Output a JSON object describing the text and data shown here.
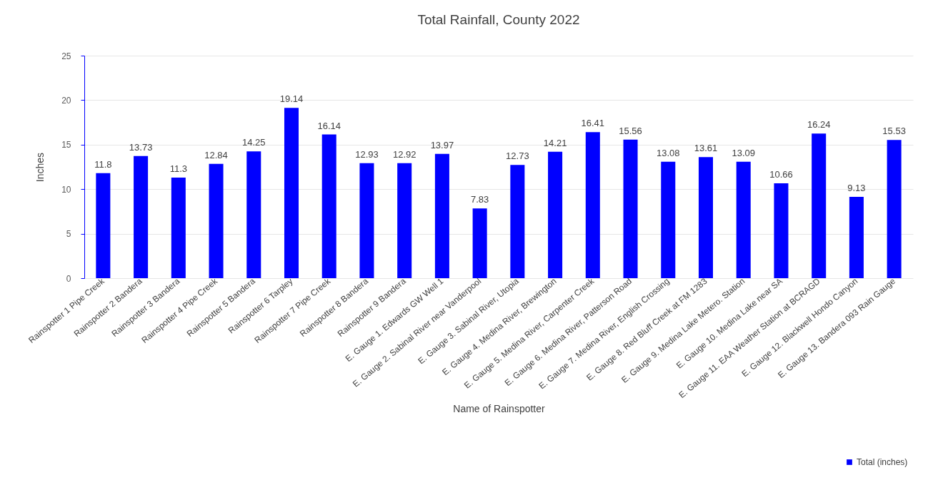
{
  "chart_data": {
    "type": "bar",
    "title": "Total Rainfall, County 2022",
    "xlabel": "Name of Rainspotter",
    "ylabel": "Inches",
    "categories": [
      "Rainspotter 1 Pipe Creek",
      "Rainspotter 2 Bandera",
      "Rainspotter 3 Bandera",
      "Rainspotter 4 Pipe Creek",
      "Rainspotter 5 Bandera",
      "Rainspotter 6 Tarpley",
      "Rainspotter 7 Pipe Creek",
      "Rainspotter 8 Bandera",
      "Rainspotter 9 Bandera",
      "E. Gauge 1. Edwards GW Well 1",
      "E. Gauge 2. Sabinal River near Vanderpool",
      "E. Gauge 3. Sabinal River, Utopia",
      "E. Gauge 4. Medina River, Brewington",
      "E. Gauge 5. Medina River, Carpenter Creek",
      "E. Gauge 6. Medina River, Patterson Road",
      "E. Gauge 7. Medina River, English Crossing",
      "E. Gauge 8. Red Bluff Creek at FM 1283",
      "E. Gauge 9. Medina Lake Metero. Station",
      "E. Gauge 10. Medina Lake near SA",
      "E. Gauge 11. EAA Weather Station at BCRAGD",
      "E. Gauge 12. Blackwell Hondo Canyon",
      "E. Gauge 13. Bandera 093 Rain Gauge"
    ],
    "series": [
      {
        "name": "Total (inches)",
        "color": "#0000ff",
        "values": [
          11.8,
          13.73,
          11.3,
          12.84,
          14.25,
          19.14,
          16.14,
          12.93,
          12.92,
          13.97,
          7.83,
          12.73,
          14.21,
          16.41,
          15.56,
          13.08,
          13.61,
          13.09,
          10.66,
          16.24,
          9.13,
          15.53
        ]
      }
    ],
    "ylim": [
      0,
      25
    ],
    "yticks": [
      0,
      5,
      10,
      15,
      20,
      25
    ],
    "grid": "y",
    "legend": "bottom right",
    "data_labels": true
  }
}
